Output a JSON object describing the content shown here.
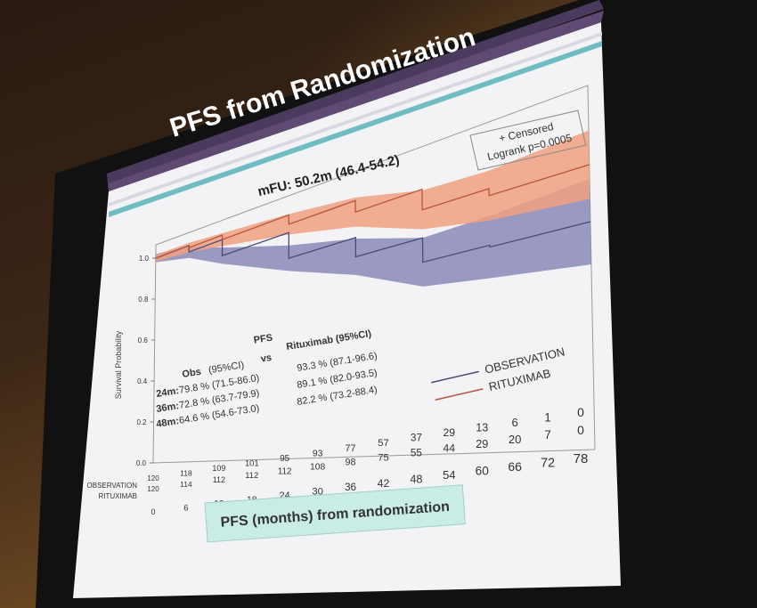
{
  "slide": {
    "title": "PFS from Randomization",
    "mfu": "mFU: 50.2m (46.4-54.2)",
    "censored_label": "+ Censored",
    "logrank": "Logrank p=0.0005",
    "y_axis_label": "Survival Probability",
    "x_axis_title": "PFS (months) from randomization",
    "comparison": {
      "pfs_label": "PFS",
      "vs_label": "vs",
      "obs_header": "Obs",
      "obs_ci_header": "(95%CI)",
      "rtx_header": "Rituximab (95%CI)",
      "rows": [
        {
          "time": "24m:",
          "obs": "79.8 % (71.5-86.0)",
          "rtx": "93.3 % (87.1-96.6)"
        },
        {
          "time": "36m:",
          "obs": "72.8 % (63.7-79.9)",
          "rtx": "89.1 % (82.0-93.5)"
        },
        {
          "time": "48m:",
          "obs": "64.6 % (54.6-73.0)",
          "rtx": "82.2 % (73.2-88.4)"
        }
      ]
    },
    "legend": [
      {
        "name": "OBSERVATION",
        "color": "#4a4a7a"
      },
      {
        "name": "RITUXIMAB",
        "color": "#b8553a"
      }
    ],
    "y_ticks": [
      "0.0",
      "0.2",
      "0.4",
      "0.6",
      "0.8",
      "1.0"
    ],
    "x_ticks": [
      "0",
      "6",
      "12",
      "18",
      "24",
      "30",
      "36",
      "42",
      "48",
      "54",
      "60",
      "66",
      "72",
      "78"
    ],
    "at_risk": {
      "observation_label": "OBSERVATION",
      "rituximab_label": "RITUXIMAB",
      "observation": [
        "120",
        "118",
        "109",
        "101",
        "95",
        "93",
        "77",
        "57",
        "37",
        "29",
        "13",
        "6",
        "1",
        "0"
      ],
      "rituximab": [
        "120",
        "114",
        "112",
        "112",
        "112",
        "108",
        "98",
        "75",
        "55",
        "44",
        "29",
        "20",
        "7",
        "0"
      ]
    },
    "colors": {
      "header_purple": "#5e4a72",
      "teal_stripe": "#6fbcc2",
      "obs_band": "#8a88b8",
      "rtx_band": "#f0a080",
      "footer_box": "#c9ece6"
    }
  }
}
